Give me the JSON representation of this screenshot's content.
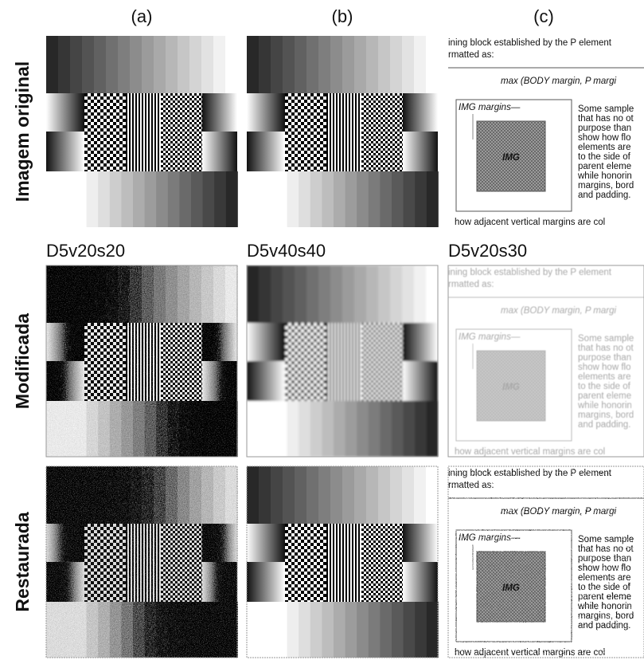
{
  "column_labels": [
    "(a)",
    "(b)",
    "(c)"
  ],
  "row_labels": [
    "Imagem original",
    "Modificada",
    "Restaurada"
  ],
  "parameter_labels": [
    "D5v20s20",
    "D5v40s40",
    "D5v20s30"
  ],
  "document": {
    "line_1": "ining block established by the P element",
    "line_2": "rmatted as:",
    "formula": "max (BODY margin, P margi",
    "margins_label": "IMG margins—",
    "img_label": "IMG",
    "sample_lines": [
      "Some sample",
      "that has no ot",
      "purpose than",
      "show how flo",
      "elements are",
      "to the side of",
      "parent eleme",
      "while honorin",
      "margins, bord",
      "and padding."
    ],
    "bottom_line": "how adjacent vertical margins are col"
  }
}
